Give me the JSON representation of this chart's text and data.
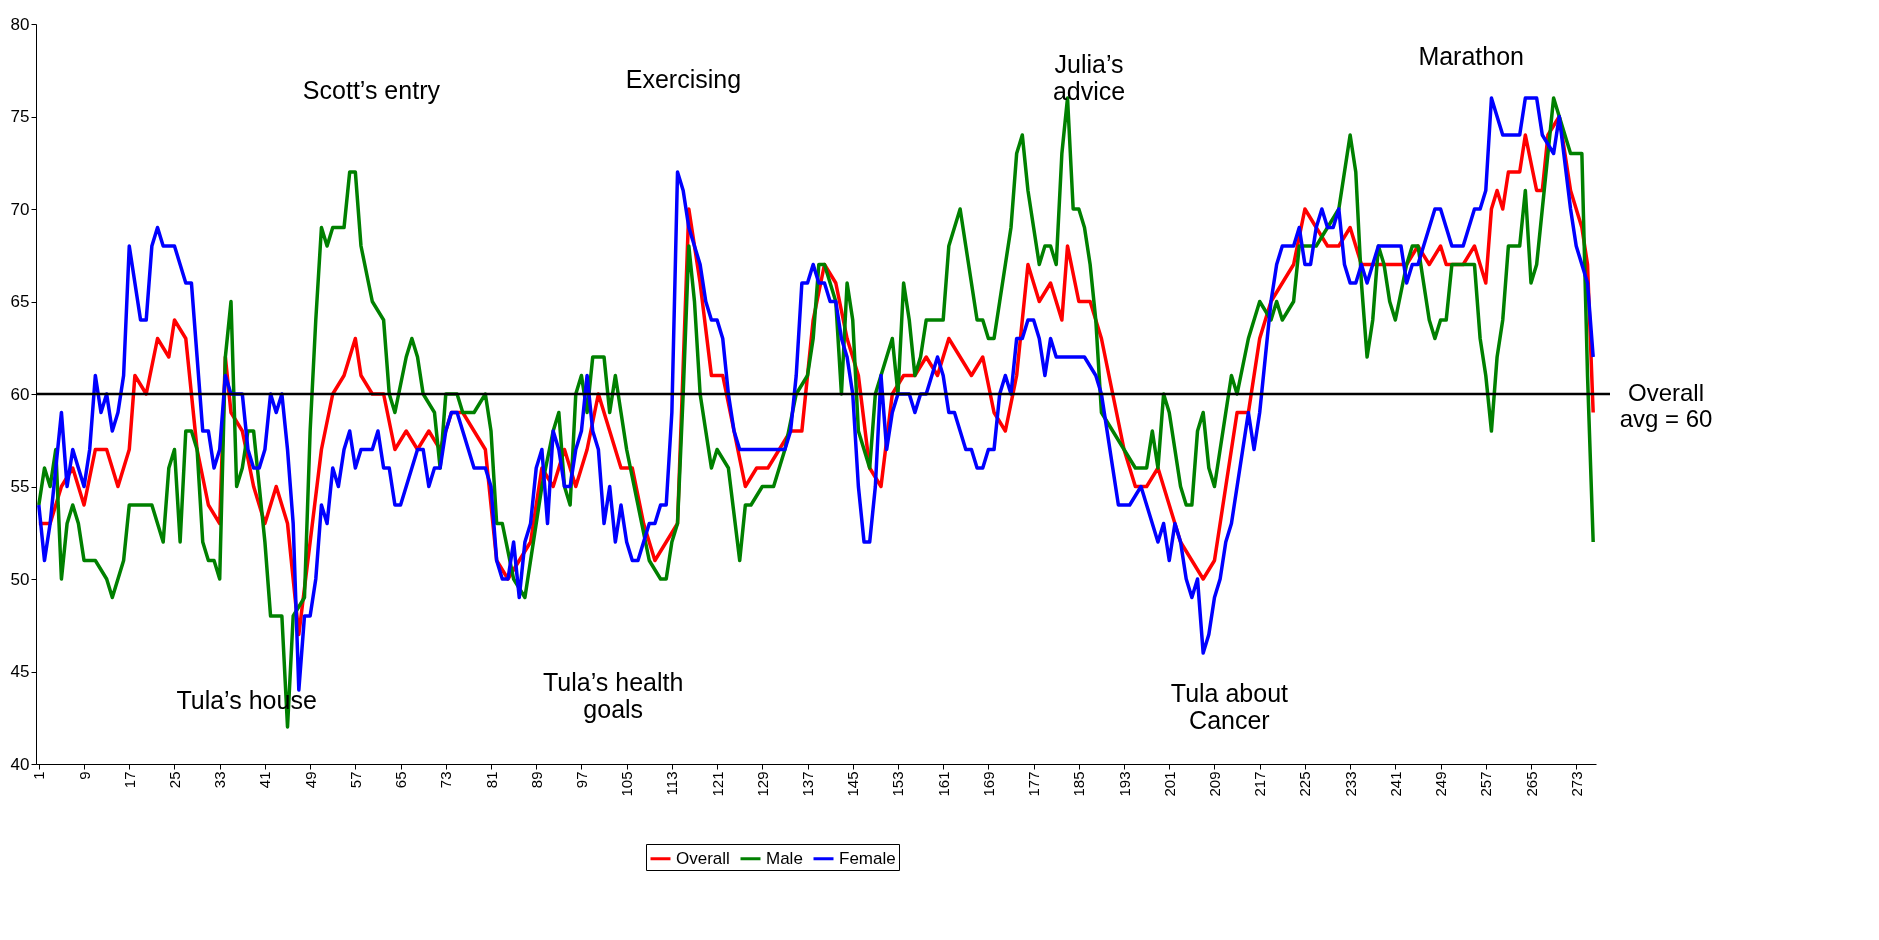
{
  "chart_data": {
    "type": "line",
    "xlim": [
      0.5,
      276.5
    ],
    "xticks": [
      1,
      9,
      17,
      25,
      33,
      41,
      49,
      57,
      65,
      73,
      81,
      89,
      97,
      105,
      113,
      121,
      129,
      137,
      145,
      153,
      161,
      169,
      177,
      185,
      193,
      201,
      209,
      217,
      225,
      233,
      241,
      249,
      257,
      265,
      273
    ],
    "ylim": [
      40,
      80
    ],
    "yticks": [
      40,
      45,
      50,
      55,
      60,
      65,
      70,
      75,
      80
    ],
    "grid": false,
    "legend": "bottom",
    "line_style": "solid",
    "marker": "none",
    "ref_lines": [
      {
        "axis": "y",
        "value": 60,
        "label": "Overall\navg = 60",
        "color": "#000000"
      }
    ],
    "annotations": [
      "Tula’s house",
      "Scott’s entry",
      "Tula’s health\ngoals",
      "Exercising",
      "Julia’s\nadvice",
      "Tula about\nCancer",
      "Marathon"
    ],
    "series": [
      {
        "name": "Overall",
        "color": "#ff0000",
        "x": [
          1,
          3,
          5,
          7,
          9,
          11,
          13,
          15,
          17,
          18,
          20,
          22,
          24,
          25,
          27,
          29,
          31,
          33,
          34,
          35,
          37,
          39,
          41,
          43,
          45,
          47,
          49,
          51,
          53,
          55,
          57,
          58,
          60,
          62,
          64,
          66,
          68,
          70,
          72,
          74,
          76,
          78,
          80,
          82,
          84,
          86,
          88,
          90,
          92,
          94,
          96,
          98,
          100,
          102,
          104,
          106,
          108,
          110,
          112,
          114,
          116,
          118,
          120,
          122,
          124,
          126,
          128,
          130,
          132,
          134,
          136,
          138,
          140,
          142,
          144,
          146,
          148,
          150,
          152,
          154,
          156,
          158,
          160,
          162,
          164,
          166,
          168,
          170,
          172,
          174,
          176,
          178,
          180,
          182,
          183,
          185,
          187,
          189,
          191,
          193,
          195,
          197,
          199,
          201,
          203,
          205,
          207,
          209,
          211,
          213,
          215,
          217,
          219,
          221,
          223,
          225,
          227,
          229,
          231,
          233,
          235,
          237,
          239,
          241,
          243,
          245,
          247,
          249,
          250,
          253,
          255,
          256,
          257,
          258,
          259,
          260,
          261,
          263,
          264,
          266,
          267,
          268,
          270,
          272,
          274,
          275,
          276
        ],
        "values": [
          53,
          53,
          55,
          56,
          54,
          57,
          57,
          55,
          57,
          61,
          60,
          63,
          62,
          64,
          63,
          57,
          54,
          53,
          62,
          59,
          58,
          55,
          53,
          55,
          53,
          47,
          52,
          57,
          60,
          61,
          63,
          61,
          60,
          60,
          57,
          58,
          57,
          58,
          57,
          59,
          59,
          58,
          57,
          51,
          50,
          51,
          52,
          56,
          55,
          57,
          55,
          57,
          60,
          58,
          56,
          56,
          53,
          51,
          52,
          53,
          70,
          66,
          61,
          61,
          58,
          55,
          56,
          56,
          57,
          58,
          58,
          64,
          67,
          66,
          63,
          61,
          56,
          55,
          60,
          61,
          61,
          62,
          61,
          63,
          62,
          61,
          62,
          59,
          58,
          61,
          67,
          65,
          66,
          64,
          68,
          65,
          65,
          63,
          60,
          57,
          55,
          55,
          56,
          54,
          52,
          51,
          50,
          51,
          55,
          59,
          59,
          63,
          65,
          66,
          67,
          70,
          69,
          68,
          68,
          69,
          67,
          67,
          67,
          67,
          67,
          68,
          67,
          68,
          67,
          67,
          68,
          67,
          66,
          70,
          71,
          70,
          72,
          72,
          74,
          71,
          71,
          74,
          75,
          71,
          69,
          67,
          59
        ]
      },
      {
        "name": "Male",
        "color": "#008000",
        "x": [
          1,
          2,
          3,
          4,
          5,
          6,
          7,
          8,
          9,
          11,
          13,
          14,
          15,
          16,
          17,
          19,
          21,
          22,
          23,
          24,
          25,
          26,
          27,
          28,
          29,
          30,
          31,
          32,
          33,
          34,
          35,
          36,
          37,
          38,
          39,
          40,
          41,
          42,
          44,
          45,
          46,
          48,
          49,
          50,
          51,
          52,
          53,
          55,
          56,
          57,
          58,
          60,
          62,
          63,
          64,
          66,
          67,
          68,
          69,
          71,
          72,
          73,
          75,
          76,
          78,
          80,
          81,
          82,
          83,
          85,
          87,
          88,
          90,
          92,
          93,
          94,
          95,
          96,
          97,
          98,
          99,
          101,
          102,
          103,
          104,
          105,
          107,
          109,
          111,
          112,
          113,
          114,
          115,
          116,
          117,
          118,
          119,
          120,
          121,
          123,
          125,
          126,
          127,
          129,
          131,
          133,
          135,
          137,
          138,
          139,
          140,
          142,
          143,
          144,
          145,
          146,
          147,
          148,
          149,
          150,
          151,
          152,
          153,
          154,
          155,
          156,
          157,
          158,
          160,
          161,
          162,
          163,
          164,
          165,
          166,
          167,
          168,
          169,
          170,
          171,
          172,
          173,
          174,
          175,
          176,
          177,
          178,
          179,
          180,
          181,
          182,
          183,
          184,
          185,
          186,
          187,
          188,
          189,
          191,
          193,
          195,
          197,
          198,
          199,
          200,
          201,
          203,
          204,
          205,
          206,
          207,
          208,
          209,
          210,
          211,
          212,
          213,
          215,
          217,
          219,
          220,
          221,
          223,
          224,
          225,
          227,
          229,
          231,
          233,
          234,
          235,
          236,
          237,
          238,
          239,
          240,
          241,
          243,
          244,
          245,
          246,
          247,
          248,
          249,
          250,
          251,
          255,
          256,
          257,
          258,
          259,
          260,
          261,
          263,
          264,
          265,
          266,
          268,
          269,
          270,
          272,
          274,
          275,
          276
        ],
        "values": [
          54,
          56,
          55,
          57,
          50,
          53,
          54,
          53,
          51,
          51,
          50,
          49,
          50,
          51,
          54,
          54,
          54,
          53,
          52,
          56,
          57,
          52,
          58,
          58,
          57,
          52,
          51,
          51,
          50,
          62,
          65,
          55,
          56,
          58,
          58,
          55,
          52,
          48,
          48,
          42,
          48,
          49,
          58,
          64,
          69,
          68,
          69,
          69,
          72,
          72,
          68,
          65,
          64,
          60,
          59,
          62,
          63,
          62,
          60,
          59,
          56,
          60,
          60,
          59,
          59,
          60,
          58,
          53,
          53,
          50,
          49,
          51,
          55,
          58,
          59,
          55,
          54,
          60,
          61,
          59,
          62,
          62,
          59,
          61,
          59,
          57,
          54,
          51,
          50,
          50,
          52,
          53,
          60,
          68,
          65,
          60,
          58,
          56,
          57,
          56,
          51,
          54,
          54,
          55,
          55,
          57,
          60,
          61,
          63,
          67,
          67,
          65,
          60,
          66,
          64,
          58,
          57,
          56,
          60,
          61,
          62,
          63,
          60,
          66,
          64,
          61,
          62,
          64,
          64,
          64,
          68,
          69,
          70,
          68,
          66,
          64,
          64,
          63,
          63,
          65,
          67,
          69,
          73,
          74,
          71,
          69,
          67,
          68,
          68,
          67,
          73,
          76,
          70,
          70,
          69,
          67,
          64,
          59,
          58,
          57,
          56,
          56,
          58,
          56,
          60,
          59,
          55,
          54,
          54,
          58,
          59,
          56,
          55,
          57,
          59,
          61,
          60,
          63,
          65,
          64,
          65,
          64,
          65,
          68,
          68,
          68,
          69,
          70,
          74,
          72,
          66,
          62,
          64,
          68,
          67,
          65,
          64,
          67,
          68,
          68,
          66,
          64,
          63,
          64,
          64,
          67,
          67,
          63,
          61,
          58,
          62,
          64,
          68,
          68,
          71,
          66,
          67,
          73,
          76,
          75,
          73,
          73,
          61,
          52
        ]
      },
      {
        "name": "Female",
        "color": "#0000ff",
        "x": [
          1,
          2,
          3,
          4,
          5,
          6,
          7,
          8,
          9,
          10,
          11,
          12,
          13,
          14,
          15,
          16,
          17,
          18,
          19,
          20,
          21,
          22,
          23,
          25,
          26,
          27,
          28,
          29,
          30,
          31,
          32,
          33,
          34,
          35,
          37,
          38,
          39,
          40,
          41,
          42,
          43,
          44,
          45,
          46,
          47,
          48,
          49,
          50,
          51,
          52,
          53,
          54,
          55,
          56,
          57,
          58,
          60,
          61,
          62,
          63,
          64,
          65,
          66,
          67,
          68,
          69,
          70,
          71,
          72,
          73,
          74,
          75,
          76,
          77,
          78,
          80,
          81,
          82,
          83,
          84,
          85,
          86,
          87,
          88,
          89,
          90,
          91,
          92,
          93,
          94,
          95,
          96,
          97,
          98,
          99,
          100,
          101,
          102,
          103,
          104,
          105,
          106,
          107,
          108,
          109,
          110,
          111,
          112,
          113,
          114,
          115,
          116,
          117,
          118,
          119,
          120,
          121,
          122,
          123,
          124,
          125,
          127,
          130,
          133,
          134,
          135,
          136,
          137,
          138,
          139,
          140,
          141,
          142,
          143,
          144,
          145,
          146,
          147,
          148,
          149,
          150,
          151,
          152,
          153,
          155,
          156,
          157,
          158,
          159,
          160,
          161,
          162,
          163,
          164,
          165,
          166,
          167,
          168,
          169,
          170,
          171,
          172,
          173,
          174,
          175,
          176,
          177,
          178,
          179,
          180,
          181,
          183,
          185,
          186,
          188,
          189,
          190,
          191,
          192,
          194,
          196,
          197,
          198,
          199,
          200,
          201,
          202,
          203,
          204,
          205,
          206,
          207,
          208,
          209,
          210,
          211,
          212,
          213,
          214,
          215,
          216,
          217,
          218,
          219,
          220,
          221,
          223,
          224,
          225,
          226,
          227,
          228,
          229,
          230,
          231,
          232,
          233,
          234,
          235,
          236,
          237,
          238,
          239,
          241,
          242,
          243,
          244,
          245,
          246,
          247,
          248,
          249,
          250,
          251,
          253,
          255,
          256,
          257,
          258,
          260,
          263,
          264,
          266,
          267,
          269,
          270,
          272,
          273,
          275,
          276
        ],
        "values": [
          54,
          51,
          53,
          56,
          59,
          55,
          57,
          56,
          55,
          57,
          61,
          59,
          60,
          58,
          59,
          61,
          68,
          66,
          64,
          64,
          68,
          69,
          68,
          68,
          67,
          66,
          66,
          62,
          58,
          58,
          56,
          57,
          61,
          60,
          60,
          57,
          56,
          56,
          57,
          60,
          59,
          60,
          57,
          53,
          44,
          48,
          48,
          50,
          54,
          53,
          56,
          55,
          57,
          58,
          56,
          57,
          57,
          58,
          56,
          56,
          54,
          54,
          55,
          56,
          57,
          57,
          55,
          56,
          56,
          58,
          59,
          59,
          58,
          57,
          56,
          56,
          55,
          51,
          50,
          50,
          52,
          49,
          52,
          53,
          56,
          57,
          53,
          58,
          57,
          55,
          55,
          57,
          58,
          61,
          58,
          57,
          53,
          55,
          52,
          54,
          52,
          51,
          51,
          52,
          53,
          53,
          54,
          54,
          59,
          72,
          71,
          69,
          68,
          67,
          65,
          64,
          64,
          63,
          60,
          58,
          57,
          57,
          57,
          57,
          58,
          61,
          66,
          66,
          67,
          66,
          66,
          65,
          65,
          63,
          62,
          60,
          55,
          52,
          52,
          55,
          61,
          57,
          59,
          60,
          60,
          59,
          60,
          60,
          61,
          62,
          61,
          59,
          59,
          58,
          57,
          57,
          56,
          56,
          57,
          57,
          60,
          61,
          60,
          63,
          63,
          64,
          64,
          63,
          61,
          63,
          62,
          62,
          62,
          62,
          61,
          60,
          58,
          56,
          54,
          54,
          55,
          54,
          53,
          52,
          53,
          51,
          53,
          52,
          50,
          49,
          50,
          46,
          47,
          49,
          50,
          52,
          53,
          55,
          57,
          59,
          57,
          59,
          62,
          65,
          67,
          68,
          68,
          69,
          67,
          67,
          69,
          70,
          69,
          69,
          70,
          67,
          66,
          66,
          67,
          66,
          67,
          68,
          68,
          68,
          68,
          66,
          67,
          67,
          68,
          69,
          70,
          70,
          69,
          68,
          68,
          70,
          70,
          71,
          76,
          74,
          74,
          76,
          76,
          74,
          73,
          75,
          70,
          68,
          66,
          62
        ]
      }
    ]
  }
}
